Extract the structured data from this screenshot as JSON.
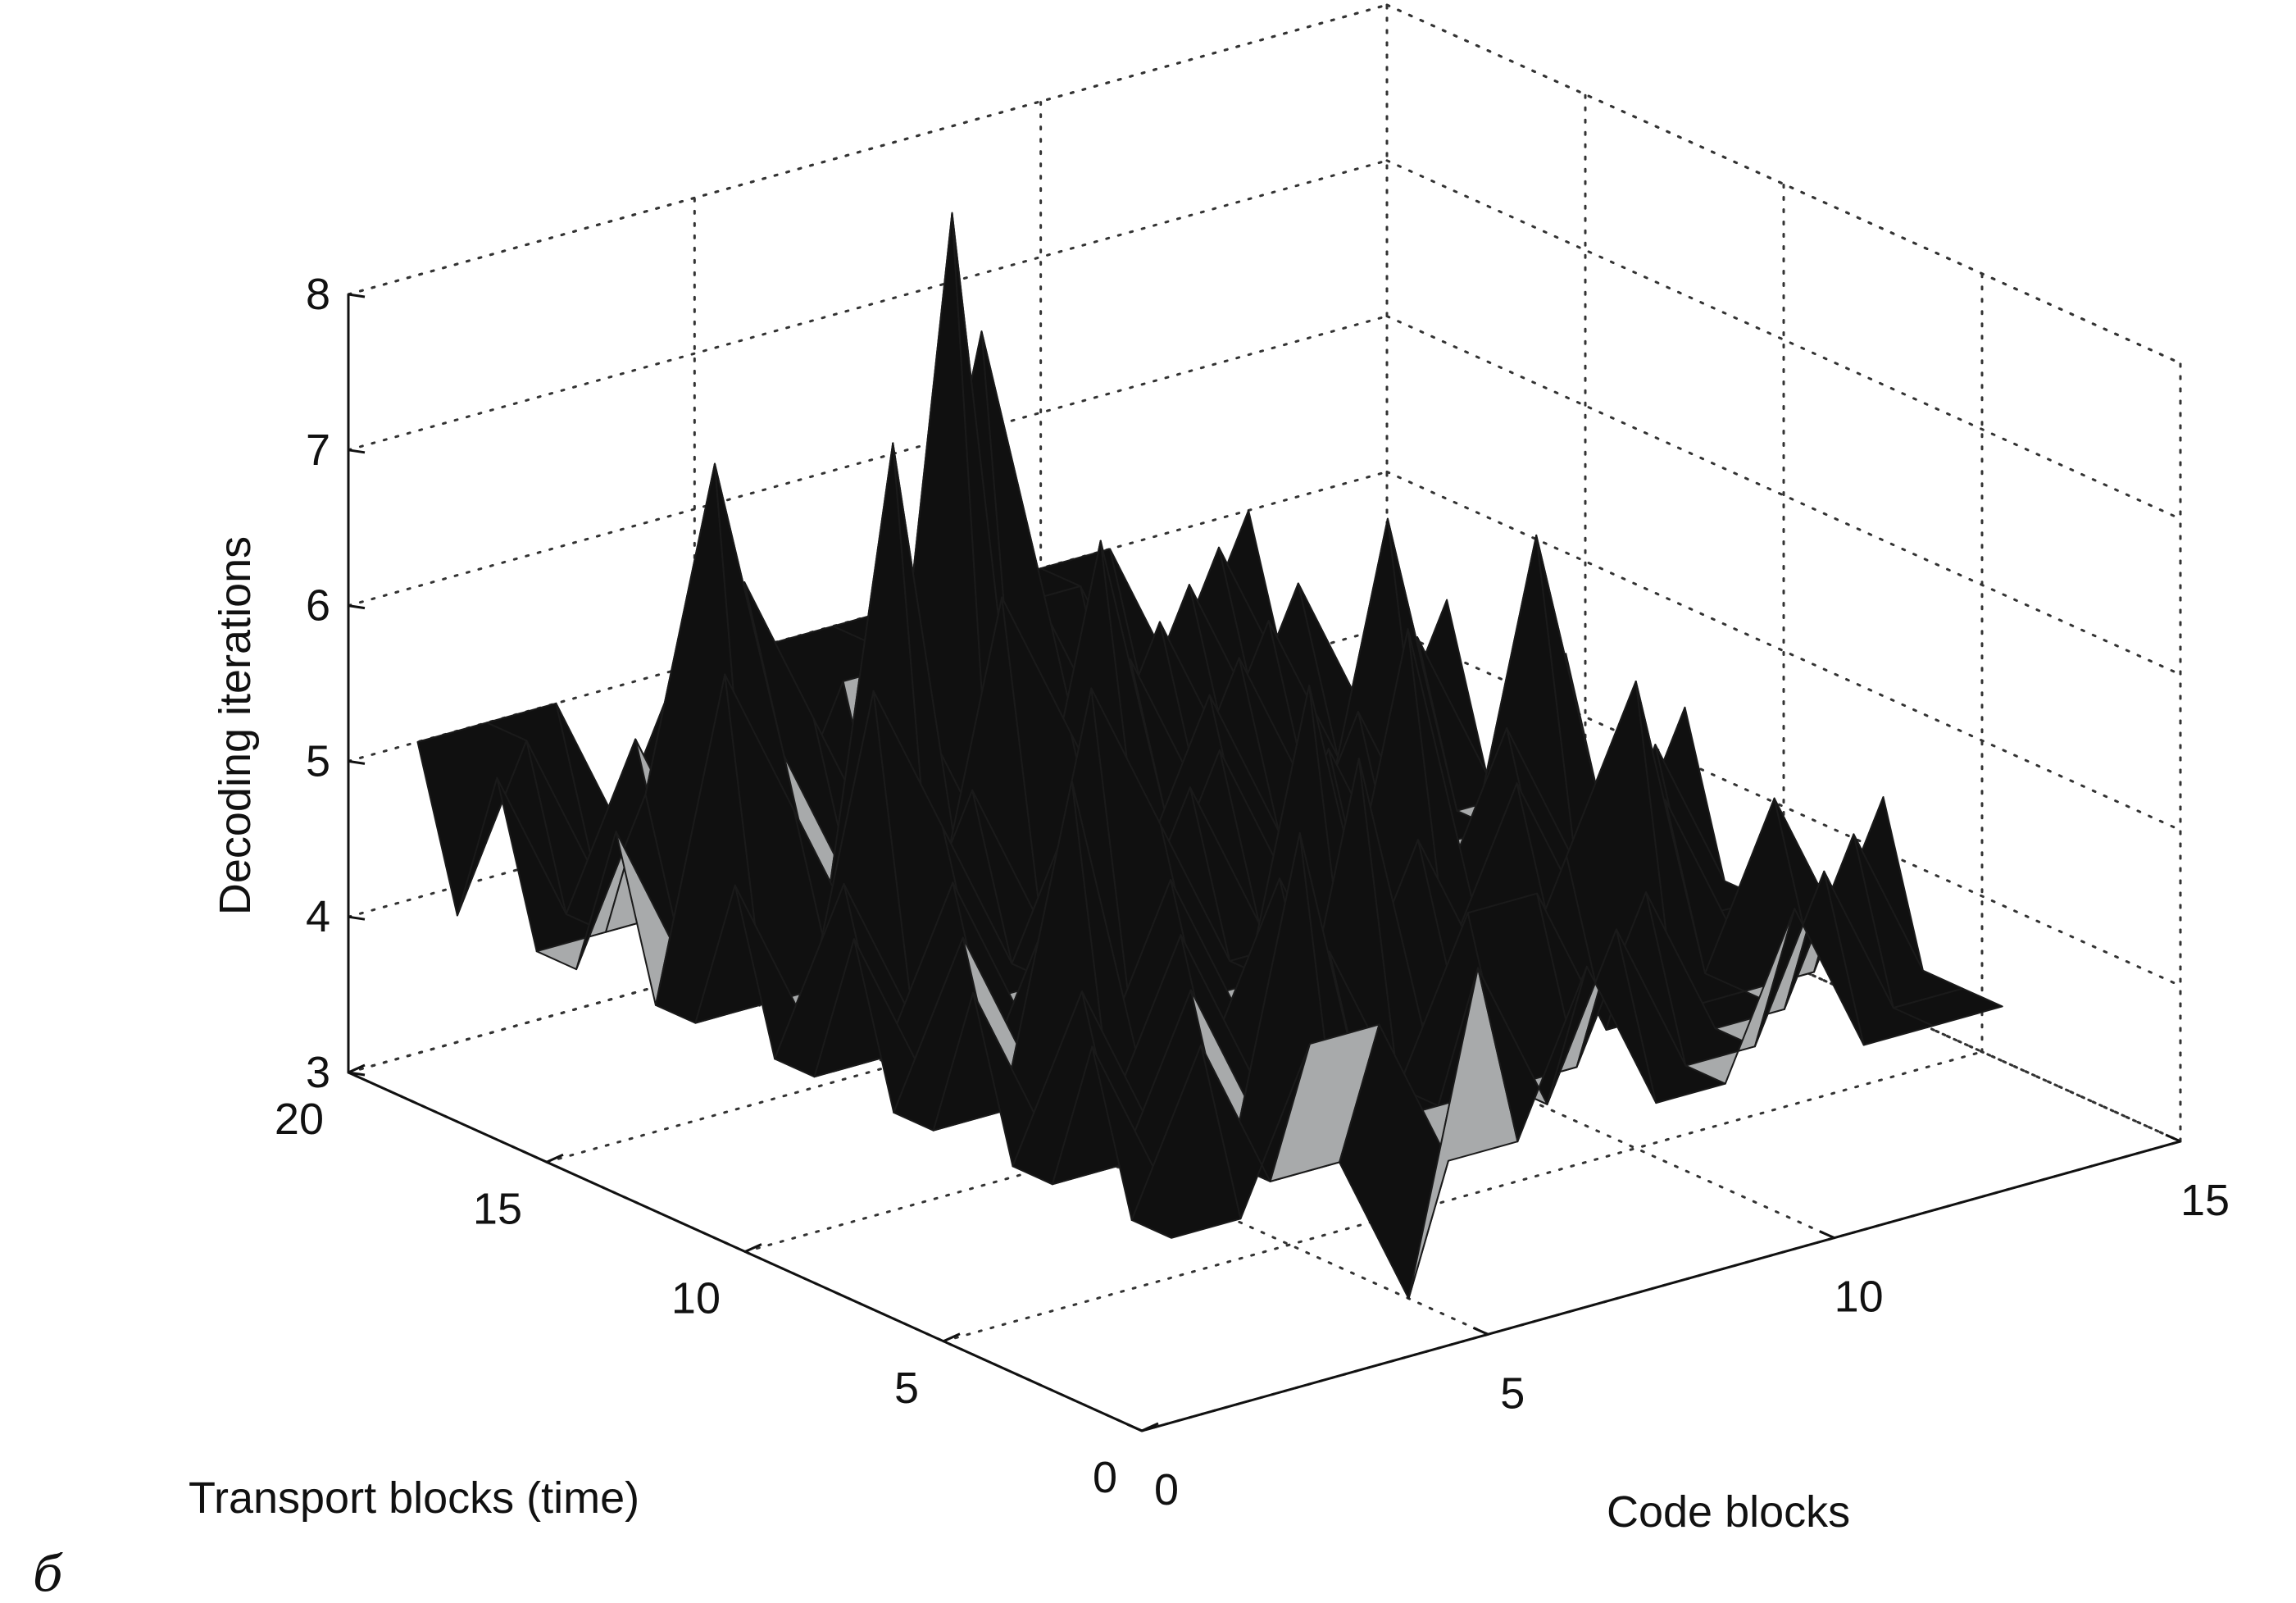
{
  "chart_data": {
    "type": "surface3d",
    "title": "",
    "panel_label": "б",
    "xlabel": "Code blocks",
    "ylabel": "Transport blocks (time)",
    "zlabel": "Decoding iterations",
    "x_range": [
      0,
      15
    ],
    "y_range": [
      0,
      20
    ],
    "z_range": [
      3,
      8
    ],
    "x_ticks": [
      {
        "value": 0,
        "label": "0"
      },
      {
        "value": 5,
        "label": "5"
      },
      {
        "value": 10,
        "label": "10"
      },
      {
        "value": 15,
        "label": "15"
      }
    ],
    "y_ticks": [
      {
        "value": 0,
        "label": "0"
      },
      {
        "value": 5,
        "label": "5"
      },
      {
        "value": 10,
        "label": "10"
      },
      {
        "value": 15,
        "label": "15"
      },
      {
        "value": 20,
        "label": "20"
      }
    ],
    "z_ticks": [
      {
        "value": 3,
        "label": "3"
      },
      {
        "value": 4,
        "label": "4"
      },
      {
        "value": 5,
        "label": "5"
      },
      {
        "value": 6,
        "label": "6"
      },
      {
        "value": 7,
        "label": "7"
      },
      {
        "value": 8,
        "label": "8"
      }
    ],
    "grid": true,
    "surface_x": [
      1,
      2,
      3,
      4,
      5,
      6,
      7,
      8,
      9,
      10,
      11,
      12,
      13
    ],
    "surface_y": [
      1,
      2,
      3,
      4,
      5,
      6,
      7,
      8,
      9,
      10,
      11,
      12,
      13,
      14,
      15,
      16,
      17,
      18,
      19,
      20
    ],
    "surface_z": [
      [
        4,
        4,
        5,
        5,
        4,
        4,
        5,
        4,
        4,
        5,
        4,
        4,
        4
      ],
      [
        4,
        5,
        4,
        4,
        3,
        5,
        4,
        5,
        4,
        4,
        5,
        4,
        4
      ],
      [
        5,
        4,
        4,
        6,
        4,
        4,
        4,
        4,
        5,
        4,
        4,
        5,
        4
      ],
      [
        4,
        4,
        5,
        4,
        5,
        4,
        5,
        5,
        4,
        4,
        4,
        4,
        5
      ],
      [
        4,
        5,
        4,
        4,
        4,
        6,
        4,
        4,
        5,
        6,
        4,
        5,
        4
      ],
      [
        5,
        4,
        4,
        5,
        4,
        4,
        4,
        4,
        4,
        4,
        5,
        4,
        4
      ],
      [
        4,
        4,
        6,
        4,
        4,
        5,
        4,
        5,
        4,
        4,
        4,
        4,
        4
      ],
      [
        4,
        5,
        4,
        4,
        5,
        4,
        6,
        4,
        4,
        5,
        4,
        5,
        4
      ],
      [
        5,
        4,
        4,
        5,
        4,
        4,
        4,
        4,
        6,
        4,
        4,
        4,
        5
      ],
      [
        4,
        4,
        5,
        4,
        6,
        5,
        4,
        4,
        4,
        4,
        5,
        4,
        4
      ],
      [
        4,
        5,
        4,
        4,
        4,
        4,
        5,
        4,
        5,
        4,
        4,
        6,
        4
      ],
      [
        5,
        4,
        6,
        5,
        4,
        5,
        4,
        5,
        4,
        5,
        4,
        4,
        5
      ],
      [
        4,
        4,
        4,
        4,
        5,
        4,
        4,
        4,
        4,
        4,
        6,
        4,
        4
      ],
      [
        4,
        6,
        5,
        4,
        4,
        6,
        5,
        4,
        5,
        4,
        4,
        5,
        4
      ],
      [
        5,
        4,
        4,
        4,
        7,
        4,
        4,
        6,
        4,
        5,
        4,
        4,
        5
      ],
      [
        4,
        5,
        7,
        5,
        4,
        5,
        4,
        4,
        5,
        4,
        5,
        4,
        4
      ],
      [
        4,
        4,
        4,
        6,
        5,
        4,
        8,
        4,
        4,
        5,
        4,
        5,
        4
      ],
      [
        5,
        4,
        5,
        4,
        4,
        5,
        5,
        7,
        5,
        4,
        5,
        4,
        4
      ],
      [
        4,
        5,
        4,
        5,
        4,
        4,
        5,
        4,
        5,
        5,
        4,
        5,
        4
      ],
      [
        5,
        5,
        5,
        4,
        5,
        5,
        5,
        5,
        5,
        5,
        5,
        4,
        5
      ]
    ],
    "colors": {
      "surface_dark": "#101010",
      "surface_light": "#a8aaab",
      "edge": "#1a1a1a",
      "grid": "#333333"
    }
  }
}
